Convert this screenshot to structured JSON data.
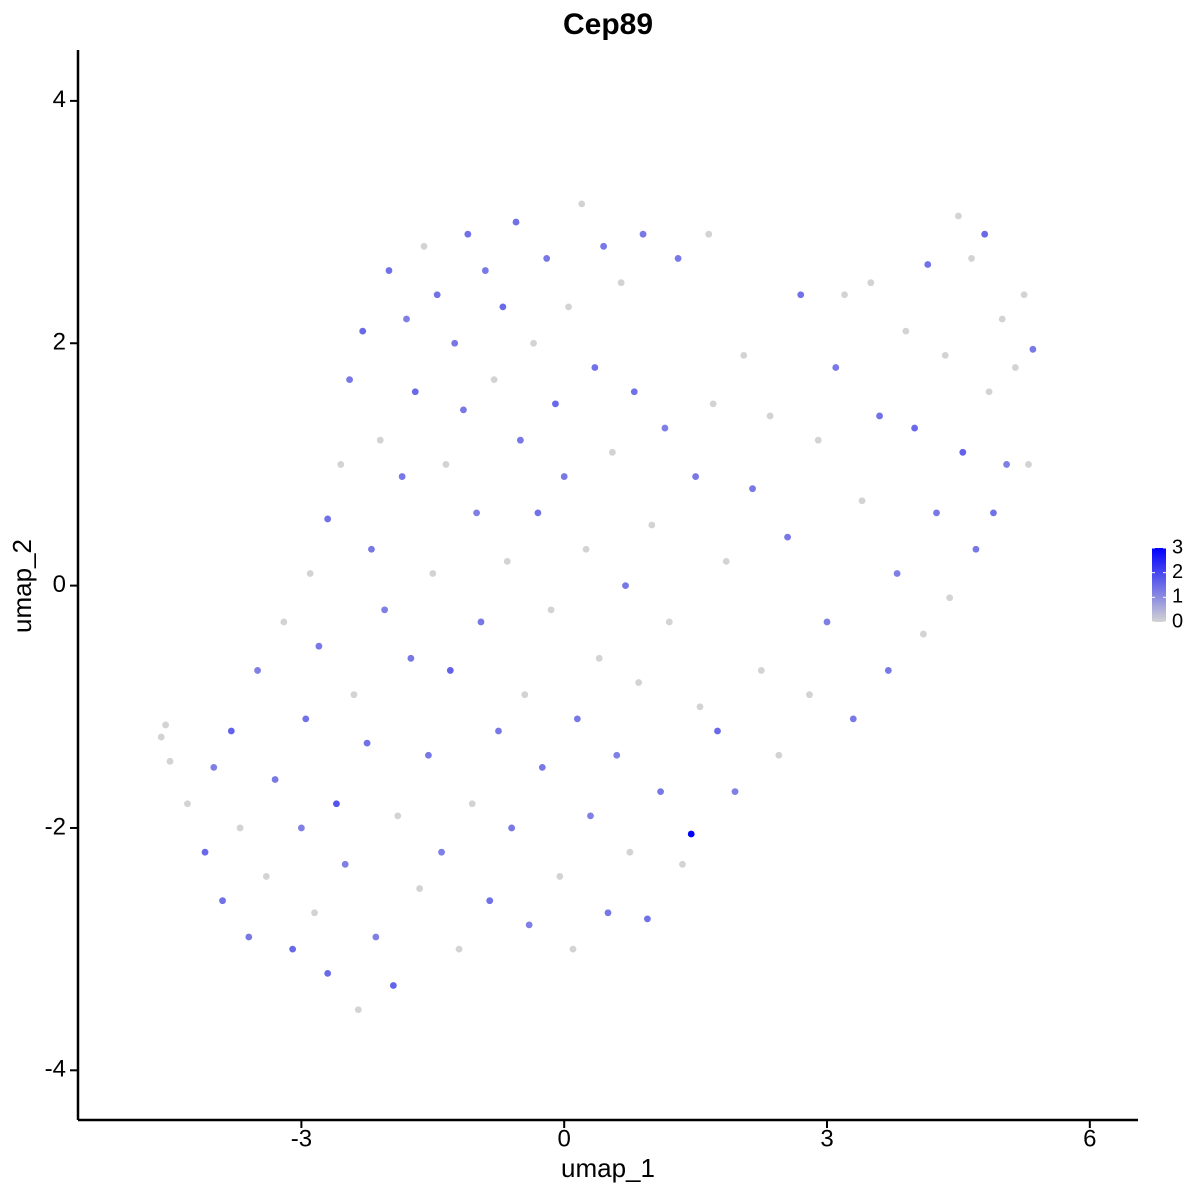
{
  "chart_data": {
    "type": "scatter",
    "title": "Cep89",
    "x_label": "umap_1",
    "y_label": "umap_2",
    "xlim": [
      -5.55,
      6.55
    ],
    "ylim": [
      -4.41,
      4.42
    ],
    "xticks": [
      -3,
      0,
      3,
      6
    ],
    "yticks": [
      -4,
      -2,
      0,
      2,
      4
    ],
    "colorbar": {
      "lim": [
        0,
        3
      ],
      "ticks": [
        0,
        1,
        2,
        3
      ],
      "low_color": "#d3d3d3",
      "high_color": "#0000ff"
    },
    "x": [
      -4.6,
      -4.55,
      -4.5,
      -4.3,
      -4.1,
      -4.0,
      -3.9,
      -3.8,
      -3.7,
      -3.6,
      -3.5,
      -3.4,
      -3.3,
      -3.2,
      -3.1,
      -3.0,
      -2.95,
      -2.9,
      -2.85,
      -2.8,
      -2.7,
      -2.7,
      -2.6,
      -2.55,
      -2.5,
      -2.45,
      -2.4,
      -2.35,
      -2.3,
      -2.25,
      -2.2,
      -2.15,
      -2.1,
      -2.05,
      -2.0,
      -1.95,
      -1.9,
      -1.85,
      -1.8,
      -1.75,
      -1.7,
      -1.65,
      -1.6,
      -1.55,
      -1.5,
      -1.45,
      -1.4,
      -1.35,
      -1.3,
      -1.25,
      -1.2,
      -1.15,
      -1.1,
      -1.05,
      -1.0,
      -0.95,
      -0.9,
      -0.85,
      -0.8,
      -0.75,
      -0.7,
      -0.65,
      -0.6,
      -0.55,
      -0.5,
      -0.45,
      -0.4,
      -0.35,
      -0.3,
      -0.25,
      -0.2,
      -0.15,
      -0.1,
      -0.05,
      0.0,
      0.05,
      0.1,
      0.15,
      0.2,
      0.25,
      0.3,
      0.35,
      0.4,
      0.45,
      0.5,
      0.55,
      0.6,
      0.65,
      0.7,
      0.75,
      0.8,
      0.85,
      0.9,
      0.95,
      1.0,
      1.1,
      1.15,
      1.2,
      1.3,
      1.35,
      1.45,
      1.5,
      1.55,
      1.65,
      1.7,
      1.75,
      1.85,
      1.95,
      2.05,
      2.15,
      2.25,
      2.35,
      2.45,
      2.55,
      2.7,
      2.8,
      2.9,
      3.0,
      3.1,
      3.2,
      3.3,
      3.4,
      3.5,
      3.6,
      3.7,
      3.8,
      3.9,
      4.0,
      4.1,
      4.15,
      4.25,
      4.35,
      4.4,
      4.5,
      4.55,
      4.65,
      4.7,
      4.8,
      4.85,
      4.9,
      5.0,
      5.05,
      5.15,
      5.25,
      5.35,
      5.3
    ],
    "y": [
      -1.25,
      -1.15,
      -1.45,
      -1.8,
      -2.2,
      -1.5,
      -2.6,
      -1.2,
      -2.0,
      -2.9,
      -0.7,
      -2.4,
      -1.6,
      -0.3,
      -3.0,
      -2.0,
      -1.1,
      0.1,
      -2.7,
      -0.5,
      0.55,
      -3.2,
      -1.8,
      1.0,
      -2.3,
      1.7,
      -0.9,
      -3.5,
      2.1,
      -1.3,
      0.3,
      -2.9,
      1.2,
      -0.2,
      2.6,
      -3.3,
      -1.9,
      0.9,
      2.2,
      -0.6,
      1.6,
      -2.5,
      2.8,
      -1.4,
      0.1,
      2.4,
      -2.2,
      1.0,
      -0.7,
      2.0,
      -3.0,
      1.45,
      2.9,
      -1.8,
      0.6,
      -0.3,
      2.6,
      -2.6,
      1.7,
      -1.2,
      2.3,
      0.2,
      -2.0,
      3.0,
      1.2,
      -0.9,
      -2.8,
      2.0,
      0.6,
      -1.5,
      2.7,
      -0.2,
      1.5,
      -2.4,
      0.9,
      2.3,
      -3.0,
      -1.1,
      3.15,
      0.3,
      -1.9,
      1.8,
      -0.6,
      2.8,
      -2.7,
      1.1,
      -1.4,
      2.5,
      0.0,
      -2.2,
      1.6,
      -0.8,
      2.9,
      -2.75,
      0.5,
      -1.7,
      1.3,
      -0.3,
      2.7,
      -2.3,
      -2.05,
      0.9,
      -1.0,
      2.9,
      1.5,
      -1.2,
      0.2,
      -1.7,
      1.9,
      0.8,
      -0.7,
      1.4,
      -1.4,
      0.4,
      2.4,
      -0.9,
      1.2,
      -0.3,
      1.8,
      2.4,
      -1.1,
      0.7,
      2.5,
      1.4,
      -0.7,
      0.1,
      2.1,
      1.3,
      -0.4,
      2.65,
      0.6,
      1.9,
      -0.1,
      3.05,
      1.1,
      2.7,
      0.3,
      2.9,
      1.6,
      0.6,
      2.2,
      1.0,
      1.8,
      2.4,
      1.95,
      1.0
    ],
    "expression": [
      0,
      0,
      0,
      0,
      1.5,
      1.2,
      1.4,
      1.6,
      0,
      1.3,
      1.2,
      0,
      1.3,
      0,
      1.5,
      1.2,
      1.4,
      0,
      0,
      1.3,
      1.4,
      1.5,
      1.8,
      0,
      1.2,
      1.3,
      0,
      0,
      1.5,
      1.4,
      1.3,
      1.2,
      0,
      1.2,
      1.4,
      1.6,
      0,
      1.3,
      1.2,
      1.3,
      1.5,
      0,
      0,
      1.3,
      0,
      1.4,
      1.2,
      0,
      1.6,
      1.3,
      0,
      1.3,
      1.4,
      0,
      1.2,
      1.3,
      1.3,
      1.4,
      0,
      1.3,
      1.5,
      0,
      1.3,
      1.4,
      1.3,
      0,
      1.2,
      0,
      1.4,
      1.3,
      1.3,
      0,
      1.5,
      0,
      1.3,
      0,
      0,
      1.3,
      0,
      0,
      1.2,
      1.4,
      0,
      1.3,
      1.3,
      0,
      1.2,
      0,
      1.3,
      0,
      1.4,
      0,
      1.3,
      1.4,
      0,
      1.3,
      1.2,
      0,
      1.3,
      0,
      3,
      1.3,
      0,
      0,
      0,
      1.5,
      0,
      1.2,
      0,
      1.3,
      0,
      0,
      0,
      1.3,
      1.4,
      0,
      0,
      1.2,
      1.3,
      0,
      1.3,
      0,
      0,
      1.4,
      1.3,
      1.2,
      0,
      1.5,
      0,
      1.4,
      1.3,
      0,
      0,
      0,
      1.6,
      0,
      1.3,
      1.5,
      0,
      1.4,
      0,
      1.2,
      0,
      0,
      1.3,
      0
    ]
  }
}
